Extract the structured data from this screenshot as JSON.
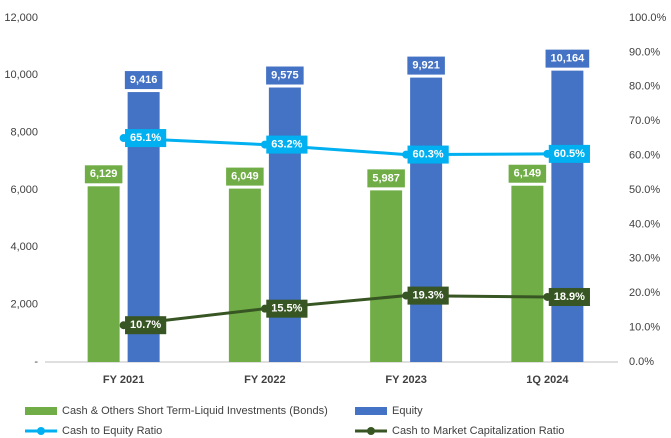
{
  "chart_data": {
    "type": "bar",
    "categories": [
      "FY 2021",
      "FY 2022",
      "FY 2023",
      "1Q 2024"
    ],
    "series": [
      {
        "name": "Cash & Others Short Term-Liquid Investments (Bonds)",
        "color": "#70ad47",
        "values": [
          6129,
          6049,
          5987,
          6149
        ],
        "value_labels": [
          "6,129",
          "6,049",
          "5,987",
          "6,149"
        ]
      },
      {
        "name": "Equity",
        "color": "#4472c4",
        "values": [
          9416,
          9575,
          9921,
          10164
        ],
        "value_labels": [
          "9,416",
          "9,575",
          "9,921",
          "10,164"
        ]
      },
      {
        "name": "Cash to Equity Ratio",
        "type": "line",
        "axis": "y2",
        "color": "#00b0f0",
        "values": [
          65.1,
          63.2,
          60.3,
          60.5
        ],
        "value_labels": [
          "65.1%",
          "63.2%",
          "60.3%",
          "60.5%"
        ]
      },
      {
        "name": "Cash to Market Capitalization Ratio",
        "type": "line",
        "axis": "y2",
        "color": "#375623",
        "values": [
          10.7,
          15.5,
          19.3,
          18.9
        ],
        "value_labels": [
          "10.7%",
          "15.5%",
          "19.3%",
          "18.9%"
        ]
      }
    ],
    "ylim": [
      0,
      12000
    ],
    "yticks": [
      {
        "value": 0,
        "label": "-"
      },
      {
        "value": 2000,
        "label": "2,000"
      },
      {
        "value": 4000,
        "label": "4,000"
      },
      {
        "value": 6000,
        "label": "6,000"
      },
      {
        "value": 8000,
        "label": "8,000"
      },
      {
        "value": 10000,
        "label": "10,000"
      },
      {
        "value": 12000,
        "label": "12,000"
      }
    ],
    "y2lim": [
      0,
      100
    ],
    "y2ticks": [
      {
        "value": 0,
        "label": "0.0%"
      },
      {
        "value": 10,
        "label": "10.0%"
      },
      {
        "value": 20,
        "label": "20.0%"
      },
      {
        "value": 30,
        "label": "30.0%"
      },
      {
        "value": 40,
        "label": "40.0%"
      },
      {
        "value": 50,
        "label": "50.0%"
      },
      {
        "value": 60,
        "label": "60.0%"
      },
      {
        "value": 70,
        "label": "70.0%"
      },
      {
        "value": 80,
        "label": "80.0%"
      },
      {
        "value": 90,
        "label": "90.0%"
      },
      {
        "value": 100,
        "label": "100.0%"
      }
    ],
    "grid": false,
    "legend": "bottom"
  }
}
